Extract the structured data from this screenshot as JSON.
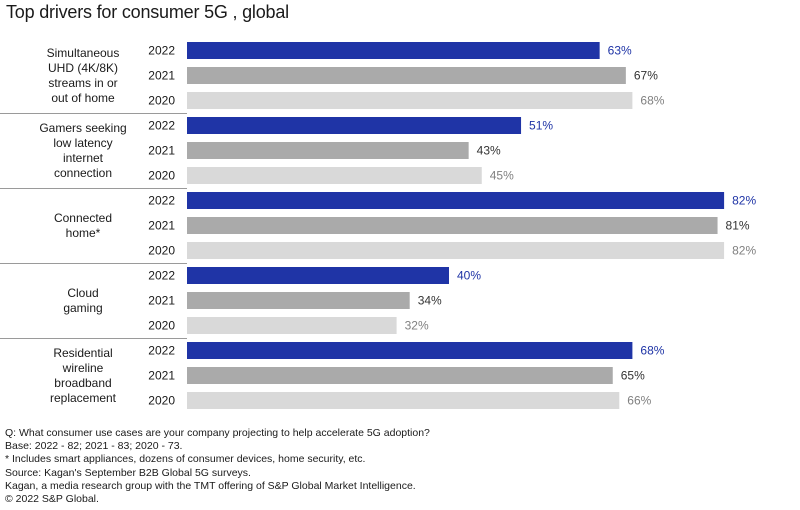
{
  "chart_data": {
    "type": "bar",
    "orientation": "horizontal",
    "title": "Top drivers for consumer 5G , global",
    "groups": [
      {
        "label": [
          "Simultaneous",
          "UHD (4K/8K)",
          "streams in or",
          "out of home"
        ],
        "bars": [
          {
            "year": "2022",
            "value": 63,
            "label": "63%"
          },
          {
            "year": "2021",
            "value": 67,
            "label": "67%"
          },
          {
            "year": "2020",
            "value": 68,
            "label": "68%"
          }
        ]
      },
      {
        "label": [
          "Gamers seeking",
          "low latency",
          "internet",
          "connection"
        ],
        "bars": [
          {
            "year": "2022",
            "value": 51,
            "label": "51%"
          },
          {
            "year": "2021",
            "value": 43,
            "label": "43%"
          },
          {
            "year": "2020",
            "value": 45,
            "label": "45%"
          }
        ]
      },
      {
        "label": [
          "Connected",
          "home*"
        ],
        "bars": [
          {
            "year": "2022",
            "value": 82,
            "label": "82%"
          },
          {
            "year": "2021",
            "value": 81,
            "label": "81%"
          },
          {
            "year": "2020",
            "value": 82,
            "label": "82%"
          }
        ]
      },
      {
        "label": [
          "Cloud",
          "gaming"
        ],
        "bars": [
          {
            "year": "2022",
            "value": 40,
            "label": "40%"
          },
          {
            "year": "2021",
            "value": 34,
            "label": "34%"
          },
          {
            "year": "2020",
            "value": 32,
            "label": "32%"
          }
        ]
      },
      {
        "label": [
          "Residential",
          "wireline",
          "broadband",
          "replacement"
        ],
        "bars": [
          {
            "year": "2022",
            "value": 68,
            "label": "68%"
          },
          {
            "year": "2021",
            "value": 65,
            "label": "65%"
          },
          {
            "year": "2020",
            "value": 66,
            "label": "66%"
          }
        ]
      }
    ],
    "xlim": [
      0,
      100
    ],
    "colors": {
      "2022": "#1f34a6",
      "2021": "#aaaaaa",
      "2020": "#d9d9d9"
    },
    "label_colors": {
      "2022": "#1f34a6",
      "2021": "#333333",
      "2020": "#808080"
    },
    "grid": false
  },
  "notes": [
    "Q: What consumer use cases are your company projecting to help accelerate 5G adoption?",
    "Base: 2022 - 82; 2021 - 83; 2020 - 73.",
    "* Includes smart appliances, dozens of consumer devices, home security, etc.",
    "Source: Kagan's September B2B Global 5G surveys.",
    "Kagan, a media research group with the TMT offering of S&P Global Market Intelligence.",
    "© 2022 S&P Global."
  ]
}
